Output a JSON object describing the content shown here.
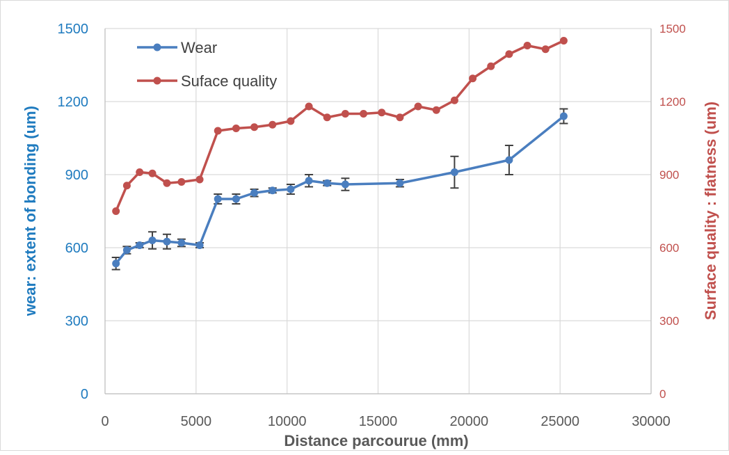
{
  "chart_data": {
    "type": "line",
    "xlabel": "Distance parcourue (mm)",
    "ylabel_left": "wear: extent of bonding (um)",
    "ylabel_right": "Surface quality : flatness (um)",
    "xlim": [
      0,
      30000
    ],
    "ylim_left": [
      0,
      1500
    ],
    "ylim_right": [
      0,
      1500
    ],
    "x_ticks": [
      "0",
      "5000",
      "10000",
      "15000",
      "20000",
      "25000",
      "30000"
    ],
    "y_ticks_left": [
      "0",
      "300",
      "600",
      "900",
      "1200",
      "1500"
    ],
    "y_ticks_right": [
      "0",
      "300",
      "600",
      "900",
      "1200",
      "1500"
    ],
    "grid": "vertical and horizontal major gridlines",
    "legend_position": "top-left",
    "colors": {
      "wear": "#4a7ebf",
      "surface": "#c0504d",
      "left_axis_text": "#1f7bbf",
      "right_axis_text": "#c0504d",
      "error_bar": "#404040",
      "grid": "#d9d9d9"
    },
    "series": [
      {
        "name": "Wear",
        "axis": "left",
        "color": "#4a7ebf",
        "x": [
          600,
          1200,
          1900,
          2600,
          3400,
          4200,
          5200,
          6200,
          7200,
          8200,
          9200,
          10200,
          11200,
          12200,
          13200,
          16200,
          19200,
          22200,
          25200
        ],
        "y": [
          535,
          590,
          610,
          630,
          625,
          620,
          610,
          800,
          800,
          825,
          835,
          840,
          875,
          865,
          860,
          865,
          910,
          960,
          1140
        ],
        "error": [
          25,
          15,
          10,
          35,
          30,
          15,
          10,
          20,
          20,
          15,
          10,
          20,
          25,
          10,
          25,
          15,
          65,
          60,
          30
        ]
      },
      {
        "name": "Suface quality",
        "axis": "right",
        "color": "#c0504d",
        "x": [
          600,
          1200,
          1900,
          2600,
          3400,
          4200,
          5200,
          6200,
          7200,
          8200,
          9200,
          10200,
          11200,
          12200,
          13200,
          14200,
          15200,
          16200,
          17200,
          18200,
          19200,
          20200,
          21200,
          22200,
          23200,
          24200,
          25200
        ],
        "y": [
          750,
          855,
          910,
          905,
          865,
          870,
          880,
          1080,
          1090,
          1095,
          1105,
          1120,
          1180,
          1135,
          1150,
          1150,
          1155,
          1135,
          1180,
          1165,
          1205,
          1295,
          1345,
          1395,
          1430,
          1415,
          1450
        ]
      }
    ]
  }
}
